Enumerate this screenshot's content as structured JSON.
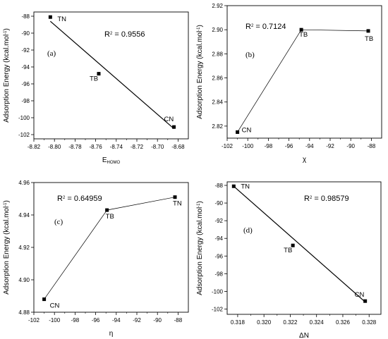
{
  "chart_data": [
    {
      "panel": "(a)",
      "type": "scatter",
      "xlabel": "E",
      "xlabel_sub": "HOMO",
      "ylabel": "Adsorption Energy (kcal.mol",
      "ylabel_sup": "-1",
      "ylabel_end": ")",
      "xlim": [
        -8.82,
        -8.67
      ],
      "ylim": [
        -102.5,
        -87.5
      ],
      "xticks": [
        -8.82,
        -8.8,
        -8.78,
        -8.76,
        -8.74,
        -8.72,
        -8.7,
        -8.68
      ],
      "xtick_labels": [
        "-8.82",
        "-8.80",
        "-8.78",
        "-8.76",
        "-8.74",
        "-8.72",
        "-8.70",
        "-8.68"
      ],
      "yticks": [
        -88,
        -90,
        -92,
        -94,
        -96,
        -98,
        -100,
        -102
      ],
      "ytick_labels": [
        "-88",
        "-90",
        "-92",
        "-94",
        "-96",
        "-98",
        "-100",
        "-102"
      ],
      "points": [
        {
          "label": "TN",
          "x": -8.804,
          "y": -88.1
        },
        {
          "label": "TB",
          "x": -8.757,
          "y": -94.8
        },
        {
          "label": "CN",
          "x": -8.684,
          "y": -101.1
        }
      ],
      "fit_line": {
        "x": [
          -8.804,
          -8.684
        ],
        "y": [
          -88.6,
          -101.3
        ]
      },
      "annotation": {
        "prefix": "R",
        "sup": "2",
        "text": " = 0.9556"
      }
    },
    {
      "panel": "(b)",
      "type": "line",
      "xlabel": "χ",
      "ylabel": "Adsorption Energy (kcal.mol",
      "ylabel_sup": "-1",
      "ylabel_end": ")",
      "xlim": [
        -102,
        -87
      ],
      "ylim": [
        2.81,
        2.92
      ],
      "xticks": [
        -102,
        -100,
        -98,
        -96,
        -94,
        -92,
        -90,
        -88
      ],
      "xtick_labels": [
        "-102",
        "-100",
        "-98",
        "-96",
        "-94",
        "-92",
        "-90",
        "-88"
      ],
      "yticks": [
        2.82,
        2.84,
        2.86,
        2.88,
        2.9,
        2.92
      ],
      "ytick_labels": [
        "2.82",
        "2.84",
        "2.86",
        "2.88",
        "2.90",
        "2.92"
      ],
      "points": [
        {
          "label": "CN",
          "x": -101.0,
          "y": 2.815
        },
        {
          "label": "TB",
          "x": -94.8,
          "y": 2.9
        },
        {
          "label": "TB",
          "x": -88.3,
          "y": 2.899
        }
      ],
      "annotation": {
        "prefix": "R",
        "sup": "2",
        "text": " = 0.7124"
      }
    },
    {
      "panel": "(c)",
      "type": "line",
      "xlabel": "η",
      "ylabel": "Adsorption Energy (kcal.mol",
      "ylabel_sup": "-1",
      "ylabel_end": ")",
      "xlim": [
        -102,
        -87
      ],
      "ylim": [
        4.88,
        4.96
      ],
      "xticks": [
        -102,
        -100,
        -98,
        -96,
        -94,
        -92,
        -90,
        -88
      ],
      "xtick_labels": [
        "-102",
        "-100",
        "-98",
        "-96",
        "-94",
        "-92",
        "-90",
        "-88"
      ],
      "yticks": [
        4.88,
        4.9,
        4.92,
        4.94,
        4.96
      ],
      "ytick_labels": [
        "4.88",
        "4.90",
        "4.92",
        "4.94",
        "4.96"
      ],
      "points": [
        {
          "label": "CN",
          "x": -101.0,
          "y": 4.888
        },
        {
          "label": "TB",
          "x": -94.9,
          "y": 4.943
        },
        {
          "label": "TN",
          "x": -88.3,
          "y": 4.951
        }
      ],
      "annotation": {
        "prefix": "R",
        "sup": "2",
        "text": " = 0.64959"
      }
    },
    {
      "panel": "(d)",
      "type": "scatter",
      "xlabel": "ΔN",
      "ylabel": "Adsorption Energy (kcal.mol",
      "ylabel_sup": "-1",
      "ylabel_end": ")",
      "xlim": [
        0.3172,
        0.3289
      ],
      "ylim": [
        -102.6,
        -87.6
      ],
      "xticks": [
        0.318,
        0.32,
        0.322,
        0.324,
        0.326,
        0.328
      ],
      "xtick_labels": [
        "0.318",
        "0.320",
        "0.322",
        "0.324",
        "0.326",
        "0.328"
      ],
      "yticks": [
        -88,
        -90,
        -92,
        -94,
        -96,
        -98,
        -100,
        -102
      ],
      "ytick_labels": [
        "-88",
        "-90",
        "-92",
        "-94",
        "-96",
        "-98",
        "-100",
        "-102"
      ],
      "points": [
        {
          "label": "TN",
          "x": 0.3177,
          "y": -88.1
        },
        {
          "label": "TB",
          "x": 0.3222,
          "y": -94.8
        },
        {
          "label": "CN",
          "x": 0.3277,
          "y": -101.1
        }
      ],
      "fit_line": {
        "x": [
          0.3177,
          0.3277
        ],
        "y": [
          -88.1,
          -101.2
        ]
      },
      "annotation": {
        "prefix": "R",
        "sup": "2",
        "text": " = 0.98579"
      }
    }
  ]
}
